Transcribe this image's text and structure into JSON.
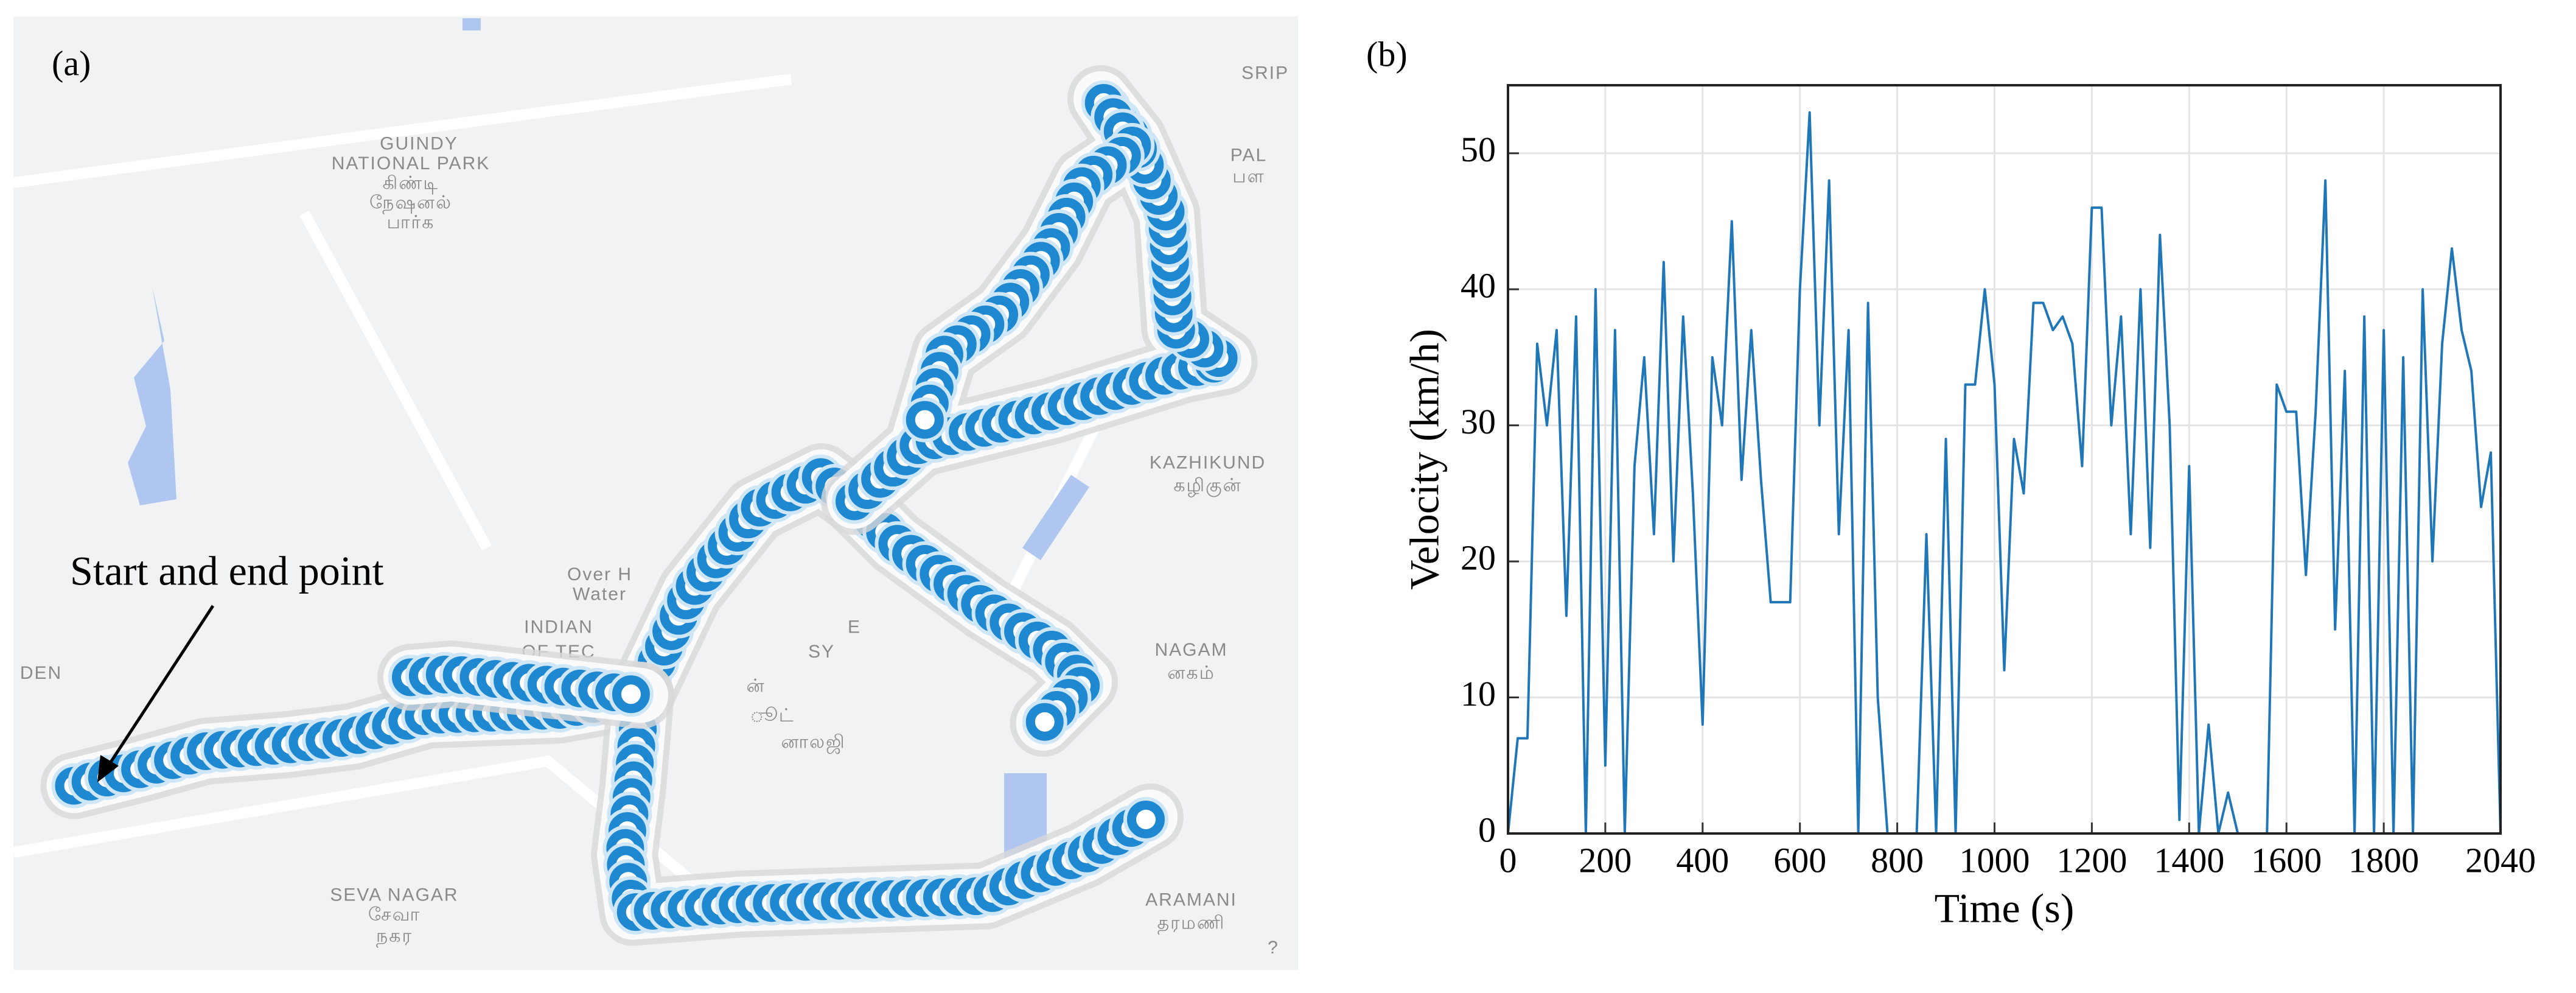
{
  "panel_a": {
    "label": "(a)",
    "annotation": "Start and end point",
    "map_labels": [
      "GUINDY",
      "NATIONAL PARK",
      "கிண்டி",
      "நேஷனல்",
      "பார்க",
      "SRIP",
      "PAL",
      "பள",
      "KAZHIKUND",
      "கழிகுன்",
      "Over H",
      "Water",
      "INDIAN",
      "E",
      "OF TEC",
      "SY",
      "ன்",
      "ூட்",
      "னாலஜி",
      "NAGAM",
      "னகம்",
      "DEN",
      "SEVA NAGAR",
      "சேவா",
      "நகர",
      "ARAMANI",
      "தரமணி",
      "?"
    ]
  },
  "panel_b": {
    "label": "(b)"
  },
  "chart_data": {
    "type": "line",
    "xlabel": "Time (s)",
    "ylabel": "Velocity (km/h)",
    "xlim": [
      0,
      2040
    ],
    "xticks": [
      0,
      200,
      400,
      600,
      800,
      1000,
      1200,
      1400,
      1600,
      1800,
      2040
    ],
    "ylim": [
      0,
      55
    ],
    "yticks": [
      0,
      10,
      20,
      30,
      40,
      50
    ],
    "grid": true,
    "x": [
      0,
      20,
      40,
      60,
      80,
      100,
      120,
      140,
      160,
      180,
      200,
      220,
      240,
      260,
      280,
      300,
      320,
      340,
      360,
      380,
      400,
      420,
      440,
      460,
      480,
      500,
      520,
      540,
      560,
      580,
      600,
      620,
      640,
      660,
      680,
      700,
      720,
      740,
      760,
      780,
      800,
      820,
      840,
      860,
      880,
      900,
      920,
      940,
      960,
      980,
      1000,
      1020,
      1040,
      1060,
      1080,
      1100,
      1120,
      1140,
      1160,
      1180,
      1200,
      1220,
      1240,
      1260,
      1280,
      1300,
      1320,
      1340,
      1360,
      1380,
      1400,
      1420,
      1440,
      1460,
      1480,
      1500,
      1520,
      1540,
      1560,
      1580,
      1600,
      1620,
      1640,
      1660,
      1680,
      1700,
      1720,
      1740,
      1760,
      1780,
      1800,
      1820,
      1840,
      1860,
      1880,
      1900,
      1920,
      1940,
      1960,
      1980,
      2000,
      2020,
      2040
    ],
    "series": [
      {
        "name": "Velocity",
        "color": "#1f77b8",
        "values": [
          0,
          7,
          7,
          36,
          30,
          37,
          16,
          38,
          0,
          40,
          5,
          37,
          0,
          27,
          35,
          22,
          42,
          20,
          38,
          25,
          8,
          35,
          30,
          45,
          26,
          37,
          26,
          17,
          17,
          17,
          40,
          53,
          30,
          48,
          22,
          37,
          0,
          39,
          10,
          0,
          0,
          0,
          0,
          22,
          0,
          29,
          0,
          33,
          33,
          40,
          33,
          12,
          29,
          25,
          39,
          39,
          37,
          38,
          36,
          27,
          46,
          46,
          30,
          38,
          22,
          40,
          21,
          44,
          30,
          1,
          27,
          0,
          8,
          0,
          3,
          0,
          0,
          0,
          0,
          33,
          31,
          31,
          19,
          31,
          48,
          15,
          34,
          0,
          38,
          0,
          37,
          0,
          35,
          0,
          40,
          20,
          36,
          43,
          37,
          34,
          24,
          28,
          0
        ]
      }
    ]
  }
}
